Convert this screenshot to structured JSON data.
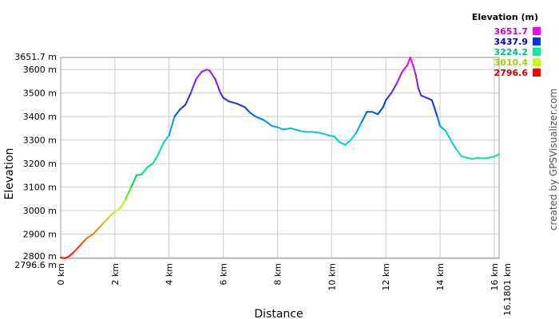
{
  "chart_data": {
    "type": "line",
    "xlabel": "Distance",
    "ylabel": "Elevation",
    "xlim": [
      0,
      16.1801
    ],
    "ylim": [
      2796.6,
      3651.7
    ],
    "x_ticks": [
      {
        "value": 0,
        "label": "0 km"
      },
      {
        "value": 2,
        "label": "2 km"
      },
      {
        "value": 4,
        "label": "4 km"
      },
      {
        "value": 6,
        "label": "6 km"
      },
      {
        "value": 8,
        "label": "8 km"
      },
      {
        "value": 10,
        "label": "10 km"
      },
      {
        "value": 12,
        "label": "12 km"
      },
      {
        "value": 14,
        "label": "14 km"
      },
      {
        "value": 16,
        "label": "16 km"
      },
      {
        "value": 16.1801,
        "label": "16.1801 km"
      }
    ],
    "y_ticks": [
      {
        "value": 2796.6,
        "label": "2796.6 m"
      },
      {
        "value": 2800,
        "label": "2800 m"
      },
      {
        "value": 2900,
        "label": "2900 m"
      },
      {
        "value": 3000,
        "label": "3000 m"
      },
      {
        "value": 3100,
        "label": "3100 m"
      },
      {
        "value": 3200,
        "label": "3200 m"
      },
      {
        "value": 3300,
        "label": "3300 m"
      },
      {
        "value": 3400,
        "label": "3400 m"
      },
      {
        "value": 3500,
        "label": "3500 m"
      },
      {
        "value": 3600,
        "label": "3600 m"
      },
      {
        "value": 3651.7,
        "label": "3651.7 m"
      }
    ],
    "grid": true,
    "legend": {
      "title": "Elevation (m)",
      "placement": "top-right",
      "entries": [
        {
          "label": "3651.7",
          "color": "#cc00cc",
          "swatch": "#ff00ff"
        },
        {
          "label": "3437.9",
          "color": "#0000cc",
          "swatch": "#0033ff"
        },
        {
          "label": "3224.2",
          "color": "#00bb88",
          "swatch": "#00ee99"
        },
        {
          "label": "3010.4",
          "color": "#aacc00",
          "swatch": "#ccff00"
        },
        {
          "label": "2796.6",
          "color": "#cc0000",
          "swatch": "#ff0000"
        }
      ]
    },
    "series": [
      {
        "x": [
          0,
          0.15,
          0.3,
          0.5,
          0.7,
          0.9,
          1.0,
          1.2,
          1.4,
          1.6,
          1.8,
          2.0,
          2.2,
          2.4,
          2.6,
          2.8,
          3.0,
          3.2,
          3.4,
          3.6,
          3.8,
          4.0,
          4.2,
          4.4,
          4.6,
          4.8,
          5.0,
          5.2,
          5.4,
          5.5,
          5.7,
          5.9,
          6.0,
          6.2,
          6.5,
          6.8,
          7.0,
          7.2,
          7.5,
          7.8,
          8.0,
          8.2,
          8.5,
          8.8,
          9.0,
          9.3,
          9.6,
          9.9,
          10.1,
          10.3,
          10.5,
          10.7,
          10.9,
          11.1,
          11.3,
          11.5,
          11.7,
          11.9,
          12.0,
          12.2,
          12.4,
          12.6,
          12.8,
          12.9,
          13.0,
          13.1,
          13.2,
          13.3,
          13.5,
          13.7,
          13.9,
          14.0,
          14.2,
          14.4,
          14.6,
          14.8,
          15.0,
          15.2,
          15.4,
          15.6,
          15.8,
          16.0,
          16.1801
        ],
        "y": [
          2800,
          2797,
          2805,
          2825,
          2850,
          2875,
          2885,
          2900,
          2925,
          2950,
          2975,
          2995,
          3010,
          3050,
          3100,
          3150,
          3155,
          3185,
          3200,
          3240,
          3290,
          3320,
          3400,
          3430,
          3450,
          3500,
          3560,
          3590,
          3600,
          3595,
          3560,
          3500,
          3480,
          3465,
          3455,
          3440,
          3415,
          3400,
          3385,
          3360,
          3355,
          3345,
          3350,
          3340,
          3335,
          3335,
          3330,
          3320,
          3315,
          3290,
          3280,
          3300,
          3330,
          3375,
          3420,
          3420,
          3410,
          3440,
          3470,
          3500,
          3540,
          3590,
          3620,
          3651.7,
          3620,
          3580,
          3520,
          3490,
          3480,
          3470,
          3400,
          3360,
          3340,
          3300,
          3260,
          3230,
          3225,
          3220,
          3225,
          3222,
          3225,
          3230,
          3240
        ]
      }
    ],
    "credit": "created by GPSVisualizer.com"
  }
}
